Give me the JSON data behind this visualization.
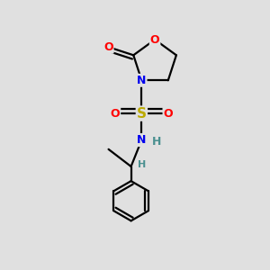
{
  "background_color": "#e0e0e0",
  "atom_colors": {
    "O": "#ff0000",
    "N": "#0000ee",
    "S": "#bbaa00",
    "C": "#000000",
    "H": "#4a9090"
  },
  "bond_color": "#000000",
  "bond_width": 1.6,
  "figsize": [
    3.0,
    3.0
  ],
  "dpi": 100
}
